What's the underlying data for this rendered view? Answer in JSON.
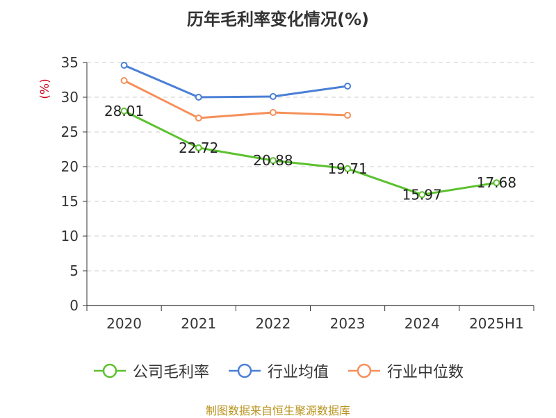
{
  "chart_data": {
    "type": "line",
    "title": "历年毛利率变化情况(%)",
    "ylabel": "(%)",
    "xlabel": "",
    "categories": [
      "2020",
      "2021",
      "2022",
      "2023",
      "2024",
      "2025H1"
    ],
    "ylim": [
      0,
      35
    ],
    "yticks": [
      0,
      5,
      10,
      15,
      20,
      25,
      30,
      35
    ],
    "grid": true,
    "legend_position": "bottom",
    "series": [
      {
        "name": "公司毛利率",
        "color": "#5bc12e",
        "values": [
          28.01,
          22.72,
          20.88,
          19.71,
          15.97,
          17.68
        ],
        "labels": [
          "28.01",
          "22.72",
          "20.88",
          "19.71",
          "15.97",
          "17.68"
        ]
      },
      {
        "name": "行业均值",
        "color": "#4a7fd6",
        "values": [
          34.6,
          30.0,
          30.1,
          31.6,
          null,
          null
        ]
      },
      {
        "name": "行业中位数",
        "color": "#f5905a",
        "values": [
          32.4,
          27.0,
          27.8,
          27.4,
          null,
          null
        ]
      }
    ]
  },
  "source_note": "制图数据来自恒生聚源数据库"
}
